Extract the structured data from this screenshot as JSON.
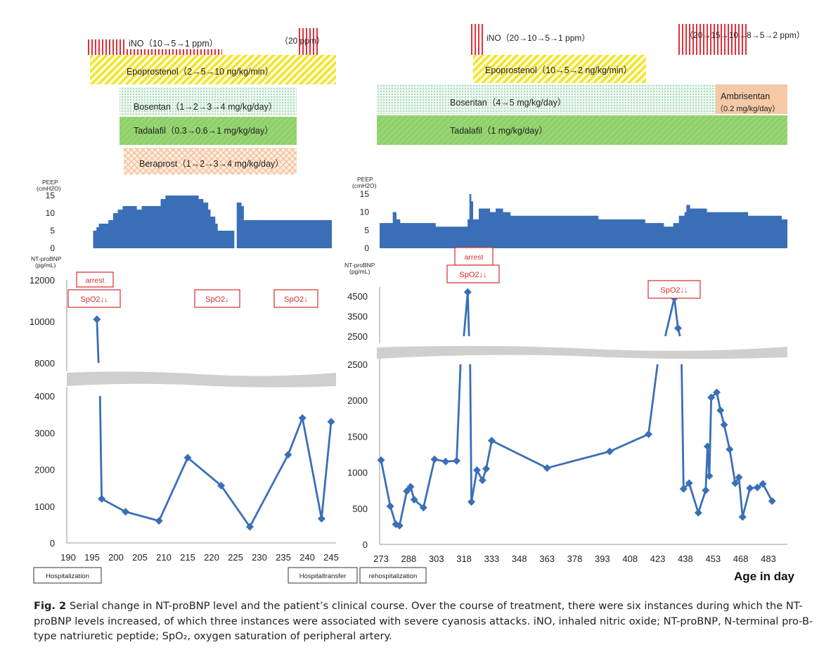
{
  "colors": {
    "series": "#3a6fb8",
    "ino": "#e0303c",
    "epoprostenol": "#f1e42c",
    "bosentan": "#a8dcb8",
    "tadalafil": "#8fd06a",
    "beraprost": "#f4b98e",
    "ambrisentan": "#f5c9a6",
    "event_box": "#d62b2b",
    "break_band": "#cfcfcf"
  },
  "left": {
    "drugs": {
      "ino": "iNO（10→5→1 ppm）",
      "ino_high": "（20 ppm）",
      "epoprostenol": "Epoprostenol（2→5→10 ng/kg/min）",
      "bosentan": "Bosentan（1→2→3→4 mg/kg/day）",
      "tadalafil": "Tadalafil（0.3→0.6→1 mg/kg/day）",
      "beraprost": "Beraprost（1→2→3→4 mg/kg/day）"
    },
    "peep_label": [
      "PEEP",
      "(cmH2O)"
    ],
    "bnp_label": [
      "NT-proBNP",
      "(pg/mL)"
    ],
    "events": {
      "arrest": "arrest",
      "spo2_double": "SpO2↓↓",
      "spo2_single": "SpO2↓"
    },
    "status": {
      "hospitalization": "Hospitalization",
      "transfer": "Hospitaltransfer"
    }
  },
  "right": {
    "drugs": {
      "ino": "iNO（20→10→5→1 ppm）",
      "ino_late": "（20→15→10→8→5→2 ppm）",
      "epoprostenol": "Epoprostenol（10→5→2 ng/kg/min）",
      "bosentan": "Bosentan（4→5 mg/kg/day）",
      "tadalafil": "Tadalafil（1 mg/kg/day）",
      "ambrisentan": "Ambrisentan",
      "ambrisentan_dose": "（0.2 mg/kg/day）"
    },
    "peep_label": [
      "PEEP",
      "(cmH2O)"
    ],
    "bnp_label": [
      "NT-proBNP",
      "(pg/mL)"
    ],
    "events": {
      "arrest": "arrest",
      "spo2_double_a": "SpO2↓↓",
      "spo2_double_b": "SpO2↓↓"
    },
    "status": {
      "rehospitalization": "rehospitalization"
    },
    "axis_title": "Age in day"
  },
  "chart_data": [
    {
      "type": "area",
      "ylabel": "PEEP (cmH2O)",
      "ylim": [
        0,
        15
      ],
      "yticks": [
        0,
        5,
        10,
        15
      ],
      "xlim": [
        190,
        245
      ],
      "steps": [
        [
          194.8,
          5
        ],
        [
          195.5,
          6
        ],
        [
          196,
          7
        ],
        [
          198,
          8
        ],
        [
          199,
          10
        ],
        [
          200,
          11
        ],
        [
          201,
          12
        ],
        [
          204,
          11
        ],
        [
          205,
          12
        ],
        [
          209,
          14
        ],
        [
          210,
          15
        ],
        [
          217,
          14
        ],
        [
          218,
          13
        ],
        [
          219,
          11
        ],
        [
          219.5,
          9
        ],
        [
          220.5,
          7
        ],
        [
          221,
          5
        ],
        [
          224.5,
          null
        ],
        [
          225,
          13
        ],
        [
          226,
          12
        ],
        [
          226.5,
          8
        ],
        [
          245,
          8
        ]
      ],
      "steps_note": "",
      "grid": false
    },
    {
      "type": "line",
      "ylabel": "NT-proBNP (pg/mL)",
      "x": [
        196,
        197,
        202,
        209,
        215,
        222,
        228,
        236,
        239,
        243,
        245
      ],
      "y": [
        10100,
        1200,
        850,
        600,
        2320,
        1560,
        440,
        2400,
        3400,
        660,
        3300
      ],
      "xlim": [
        190,
        245
      ],
      "xticks": [
        190,
        195,
        200,
        205,
        210,
        215,
        220,
        225,
        230,
        235,
        240,
        245
      ],
      "yticks_low": [
        0,
        1000,
        2000,
        3000,
        4000
      ],
      "yticks_high": [
        8000,
        10000,
        12000
      ],
      "axis_break": true,
      "grid": false
    },
    {
      "type": "area",
      "ylabel": "PEEP (cmH2O)",
      "ylim": [
        0,
        15
      ],
      "yticks": [
        0,
        5,
        10,
        15
      ],
      "xlim": [
        273,
        491
      ],
      "steps": [
        [
          273,
          7
        ],
        [
          280,
          10
        ],
        [
          282,
          8
        ],
        [
          284,
          7
        ],
        [
          303,
          6
        ],
        [
          320,
          8
        ],
        [
          321,
          15
        ],
        [
          322,
          13
        ],
        [
          323,
          8
        ],
        [
          326,
          11
        ],
        [
          332,
          10
        ],
        [
          335,
          11
        ],
        [
          339,
          10
        ],
        [
          343,
          9
        ],
        [
          390,
          8
        ],
        [
          415,
          7
        ],
        [
          425,
          6
        ],
        [
          430,
          7
        ],
        [
          433,
          9
        ],
        [
          436,
          10
        ],
        [
          437,
          12
        ],
        [
          439,
          11
        ],
        [
          445,
          11
        ],
        [
          448,
          10
        ],
        [
          470,
          9
        ],
        [
          485,
          9
        ],
        [
          488,
          8
        ],
        [
          491,
          8
        ]
      ],
      "grid": false
    },
    {
      "type": "line",
      "ylabel": "NT-proBNP (pg/mL)",
      "xlabel": "Age in day",
      "x": [
        273,
        278,
        281,
        283,
        287,
        289,
        291,
        296,
        302,
        308,
        314,
        320,
        322,
        325,
        328,
        330,
        333,
        363,
        397,
        418,
        432,
        434,
        437,
        440,
        445,
        449,
        450,
        451,
        452,
        455,
        457,
        459,
        462,
        465,
        467,
        469,
        473,
        477,
        480,
        485
      ],
      "y": [
        1170,
        530,
        280,
        260,
        740,
        800,
        620,
        510,
        1180,
        1150,
        1160,
        4700,
        590,
        1030,
        890,
        1050,
        1440,
        1060,
        1290,
        1530,
        4400,
        2900,
        770,
        850,
        440,
        750,
        1360,
        950,
        2040,
        2110,
        1860,
        1660,
        1320,
        850,
        930,
        380,
        780,
        790,
        840,
        600
      ],
      "xlim": [
        273,
        491
      ],
      "xticks": [
        273,
        288,
        303,
        318,
        333,
        348,
        363,
        378,
        393,
        408,
        423,
        438,
        453,
        468,
        483
      ],
      "yticks_low": [
        0,
        500,
        1000,
        1500,
        2000,
        2500
      ],
      "yticks_high": [
        2500,
        3500,
        4500
      ],
      "axis_break": true,
      "grid": false
    }
  ],
  "caption": {
    "label": "Fig. 2",
    "text": "Serial change in NT-proBNP level and the patient’s clinical course. Over the course of treatment, there were six instances during which the NT-proBNP levels increased, of which three instances were associated with severe cyanosis attacks. iNO, inhaled nitric oxide; NT-proBNP, N-terminal pro-B-type natriuretic peptide; SpO₂, oxygen saturation of peripheral artery."
  }
}
